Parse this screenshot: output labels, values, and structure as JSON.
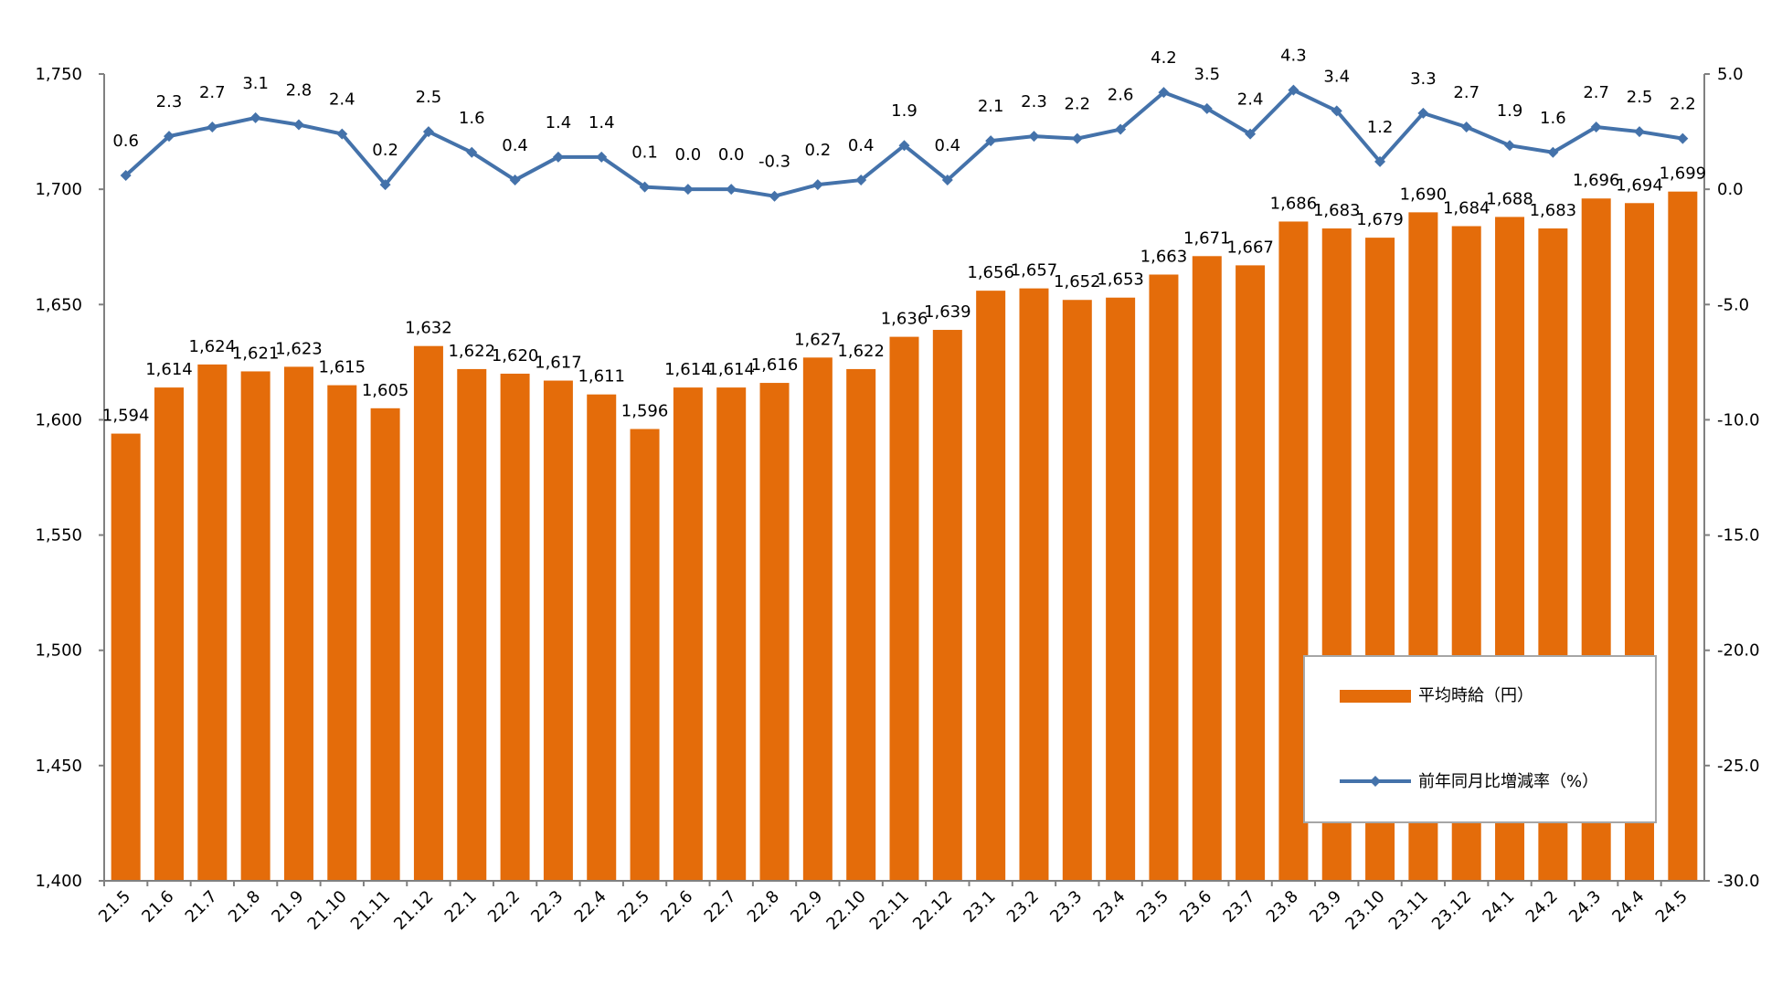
{
  "chart_data": {
    "type": "bar+line",
    "categories": [
      "21.5",
      "21.6",
      "21.7",
      "21.8",
      "21.9",
      "21.10",
      "21.11",
      "21.12",
      "22.1",
      "22.2",
      "22.3",
      "22.4",
      "22.5",
      "22.6",
      "22.7",
      "22.8",
      "22.9",
      "22.10",
      "22.11",
      "22.12",
      "23.1",
      "23.2",
      "23.3",
      "23.4",
      "23.5",
      "23.6",
      "23.7",
      "23.8",
      "23.9",
      "23.10",
      "23.11",
      "23.12",
      "24.1",
      "24.2",
      "24.3",
      "24.4",
      "24.5"
    ],
    "series": [
      {
        "name": "平均時給（円）",
        "type": "bar",
        "axis": "left",
        "color": "#E46C0A",
        "values": [
          1594,
          1614,
          1624,
          1621,
          1623,
          1615,
          1605,
          1632,
          1622,
          1620,
          1617,
          1611,
          1596,
          1614,
          1614,
          1616,
          1627,
          1622,
          1636,
          1639,
          1656,
          1657,
          1652,
          1653,
          1663,
          1671,
          1667,
          1686,
          1683,
          1679,
          1690,
          1684,
          1688,
          1683,
          1696,
          1694,
          1699
        ]
      },
      {
        "name": "前年同月比増減率（%）",
        "type": "line",
        "axis": "right",
        "color": "#4472AA",
        "values": [
          0.6,
          2.3,
          2.7,
          3.1,
          2.8,
          2.4,
          0.2,
          2.5,
          1.6,
          0.4,
          1.4,
          1.4,
          0.1,
          0.0,
          0.0,
          -0.3,
          0.2,
          0.4,
          1.9,
          0.4,
          2.1,
          2.3,
          2.2,
          2.6,
          4.2,
          3.5,
          2.4,
          4.3,
          3.4,
          1.2,
          3.3,
          2.7,
          1.9,
          1.6,
          2.7,
          2.5,
          2.2
        ]
      }
    ],
    "y_left": {
      "ylim": [
        1400,
        1750
      ],
      "ticks": [
        "1,400",
        "1,450",
        "1,500",
        "1,550",
        "1,600",
        "1,650",
        "1,700",
        "1,750"
      ]
    },
    "y_right": {
      "ylim": [
        -30,
        5
      ],
      "ticks": [
        "-30.0",
        "-25.0",
        "-20.0",
        "-15.0",
        "-10.0",
        "-5.0",
        "0.0",
        "5.0"
      ],
      "negative_color": "#FF0000"
    },
    "negative_label_color": "#FF0000",
    "legend": {
      "placement": "bottom-right",
      "entries": [
        "平均時給（円）",
        "前年同月比増減率（%）"
      ]
    },
    "grid": false,
    "title": "",
    "xlabel": "",
    "ylabel": ""
  }
}
